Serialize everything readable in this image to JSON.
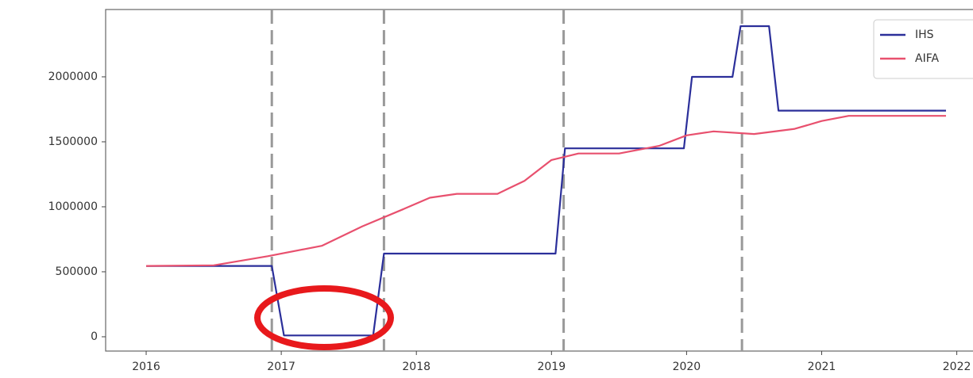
{
  "chart_data": {
    "type": "line",
    "xlim": [
      2015.7,
      2022.12
    ],
    "xticks": [
      2016,
      2017,
      2018,
      2019,
      2020,
      2021,
      2022
    ],
    "ylim": [
      -110000,
      2518000
    ],
    "yticks": [
      0,
      500000,
      1000000,
      1500000,
      2000000
    ],
    "vlines": [
      2016.93,
      2017.76,
      2019.09,
      2020.41
    ],
    "legend": "upper right",
    "series": [
      {
        "name": "IHS",
        "color": "#2b2f9a",
        "x": [
          2016.0,
          2016.93,
          2017.02,
          2017.68,
          2017.76,
          2019.03,
          2019.1,
          2019.98,
          2020.04,
          2020.34,
          2020.4,
          2020.61,
          2020.68,
          2021.92
        ],
        "values": [
          545000,
          545000,
          10000,
          10000,
          640000,
          640000,
          1450000,
          1450000,
          2000000,
          2000000,
          2390000,
          2390000,
          1740000,
          1740000
        ]
      },
      {
        "name": "AIFA",
        "color": "#e8506e",
        "x": [
          2016.0,
          2016.5,
          2016.9,
          2017.3,
          2017.6,
          2017.9,
          2018.1,
          2018.3,
          2018.6,
          2018.8,
          2019.0,
          2019.2,
          2019.5,
          2019.8,
          2020.0,
          2020.2,
          2020.5,
          2020.8,
          2021.0,
          2021.2,
          2021.92
        ],
        "values": [
          545000,
          550000,
          620000,
          700000,
          850000,
          980000,
          1070000,
          1100000,
          1100000,
          1200000,
          1360000,
          1410000,
          1410000,
          1470000,
          1550000,
          1580000,
          1560000,
          1600000,
          1660000,
          1700000,
          1700000
        ]
      }
    ]
  }
}
